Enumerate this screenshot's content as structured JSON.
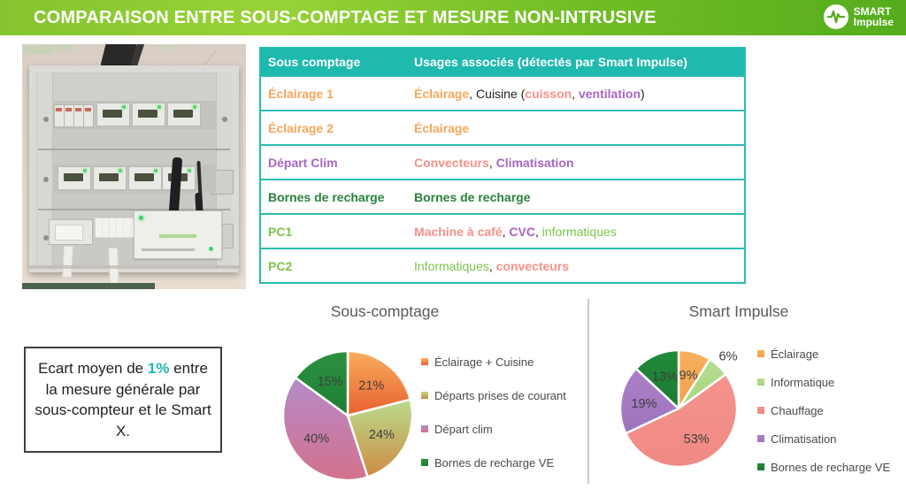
{
  "header": {
    "title": "COMPARAISON ENTRE SOUS-COMPTAGE ET MESURE NON-INTRUSIVE",
    "logo": {
      "brand_top": "SMART",
      "brand_bottom": "Impulse"
    }
  },
  "palette": {
    "teal": "#1FB9AE",
    "orange": "#F9A45B",
    "salmon": "#F7908A",
    "purple": "#A865C6",
    "green_dark": "#27823C",
    "green_light": "#7DC34A",
    "text_dark": "#1E1E1E"
  },
  "table": {
    "header": [
      "Sous comptage",
      "Usages associés (détectés par Smart Impulse)"
    ],
    "rows": [
      {
        "label": {
          "text": "Éclairage 1",
          "color": "orange"
        },
        "usage": [
          {
            "text": "Éclairage",
            "color": "orange",
            "bold": true
          },
          {
            "text": ", Cuisine ("
          },
          {
            "text": "cuisson",
            "color": "salmon",
            "bold": true
          },
          {
            "text": ", "
          },
          {
            "text": "ventilation",
            "color": "purple",
            "bold": true
          },
          {
            "text": ")"
          }
        ]
      },
      {
        "label": {
          "text": "Éclairage 2",
          "color": "orange"
        },
        "usage": [
          {
            "text": "Éclairage",
            "color": "orange",
            "bold": true
          }
        ]
      },
      {
        "label": {
          "text": "Départ Clim",
          "color": "purple"
        },
        "usage": [
          {
            "text": "Convecteurs",
            "color": "salmon",
            "bold": true
          },
          {
            "text": ", "
          },
          {
            "text": "Climatisation",
            "color": "purple",
            "bold": true
          }
        ]
      },
      {
        "label": {
          "text": "Bornes de recharge",
          "color": "green_dark"
        },
        "usage": [
          {
            "text": "Bornes de recharge",
            "color": "green_dark",
            "bold": true
          }
        ]
      },
      {
        "label": {
          "text": "PC1",
          "color": "green_light"
        },
        "usage": [
          {
            "text": "Machine à café",
            "color": "salmon",
            "bold": true
          },
          {
            "text": ", "
          },
          {
            "text": "CVC",
            "color": "purple",
            "bold": true
          },
          {
            "text": ", "
          },
          {
            "text": "informatiques",
            "color": "green_light"
          }
        ]
      },
      {
        "label": {
          "text": "PC2",
          "color": "green_light"
        },
        "usage": [
          {
            "text": "Informatiques",
            "color": "green_light"
          },
          {
            "text": ", "
          },
          {
            "text": "convecteurs",
            "color": "salmon",
            "bold": true
          }
        ]
      }
    ]
  },
  "note_box": {
    "segments": [
      {
        "text": "Ecart moyen de "
      },
      {
        "text": "1%",
        "color": "teal",
        "bold": true
      },
      {
        "text": " entre la mesure générale par sous-compteur et le Smart X."
      }
    ]
  },
  "chart_data": [
    {
      "type": "pie",
      "title": "Sous-comptage",
      "labels": [
        "Éclairage + Cuisine",
        "Départs prises de courant",
        "Départ clim",
        "Bornes de recharge VE"
      ],
      "values": [
        21,
        24,
        40,
        15
      ],
      "value_labels": [
        "21%",
        "24%",
        "40%",
        "15%"
      ],
      "colors_top": [
        "#F9AE5E",
        "#B9DC8D",
        "#B48BC9",
        "#2C9140"
      ],
      "colors_bottom": [
        "#E8602F",
        "#CE8B43",
        "#D4718B",
        "#1E7F33"
      ],
      "outside_labels": [
        false,
        false,
        false,
        false
      ],
      "start_angle_deg": 0,
      "direction": "clockwise",
      "legend_position": "right"
    },
    {
      "type": "pie",
      "title": "Smart Impulse",
      "labels": [
        "Éclairage",
        "Informatique",
        "Chauffage",
        "Climatisation",
        "Bornes de recharge VE"
      ],
      "values": [
        9,
        6,
        53,
        19,
        13
      ],
      "value_labels": [
        "9%",
        "6%",
        "53%",
        "19%",
        "13%"
      ],
      "colors_top": [
        "#F8B05E",
        "#B4DE8E",
        "#F5928C",
        "#AA80C7",
        "#218A3A"
      ],
      "colors_bottom": [
        "#F3A04D",
        "#A8D583",
        "#F08A84",
        "#9F74BE",
        "#1C7A33"
      ],
      "outside_labels": [
        false,
        true,
        false,
        false,
        false
      ],
      "start_angle_deg": 0,
      "direction": "clockwise",
      "legend_position": "right"
    }
  ]
}
